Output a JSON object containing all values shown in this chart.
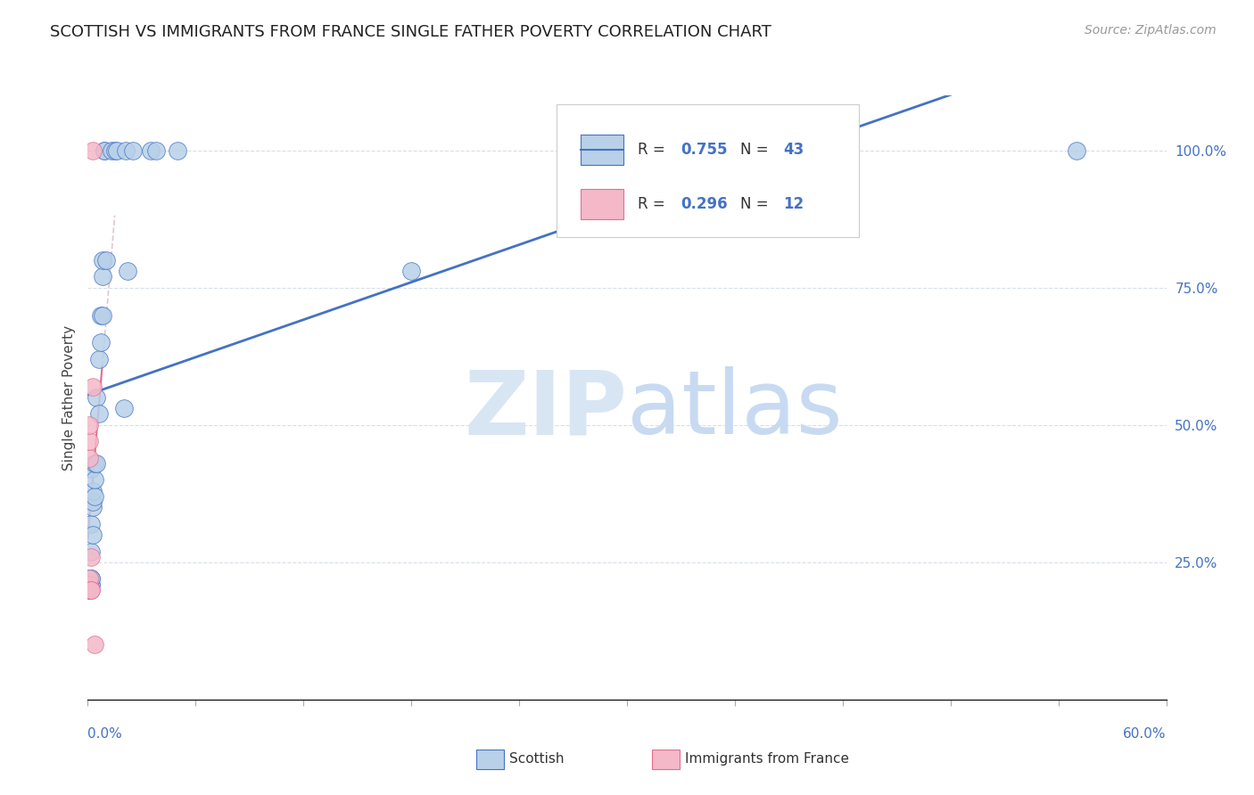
{
  "title": "SCOTTISH VS IMMIGRANTS FROM FRANCE SINGLE FATHER POVERTY CORRELATION CHART",
  "source": "Source: ZipAtlas.com",
  "ylabel": "Single Father Poverty",
  "legend_scottish": "Scottish",
  "legend_france": "Immigrants from France",
  "R_scottish": "0.755",
  "N_scottish": "43",
  "R_france": "0.296",
  "N_france": "12",
  "scottish_color": "#b8d0e8",
  "france_color": "#f4b8c8",
  "scottish_line_color": "#4472c4",
  "france_line_color": "#e07090",
  "france_dash_color": "#e0a0b8",
  "right_axis_color": "#4472c4",
  "watermark_zip_color": "#d8e6f4",
  "watermark_atlas_color": "#c8daf2",
  "grid_color": "#d8dfe8",
  "xlim": [
    0,
    0.6
  ],
  "ylim": [
    0,
    1.1
  ],
  "yticks": [
    0.25,
    0.5,
    0.75,
    1.0
  ],
  "ytick_labels": [
    "25.0%",
    "50.0%",
    "75.0%",
    "100.0%"
  ],
  "xtick_labels": [
    "0.0%",
    "60.0%"
  ],
  "scottish_x": [
    0.001,
    0.001,
    0.001,
    0.001,
    0.001,
    0.002,
    0.002,
    0.002,
    0.002,
    0.002,
    0.002,
    0.002,
    0.003,
    0.003,
    0.003,
    0.003,
    0.004,
    0.004,
    0.004,
    0.005,
    0.005,
    0.006,
    0.006,
    0.007,
    0.007,
    0.008,
    0.008,
    0.008,
    0.009,
    0.009,
    0.01,
    0.013,
    0.015,
    0.016,
    0.02,
    0.021,
    0.022,
    0.025,
    0.035,
    0.038,
    0.05,
    0.18,
    0.55
  ],
  "scottish_y": [
    0.2,
    0.21,
    0.21,
    0.21,
    0.22,
    0.21,
    0.21,
    0.22,
    0.22,
    0.27,
    0.32,
    0.42,
    0.3,
    0.35,
    0.36,
    0.38,
    0.37,
    0.4,
    0.43,
    0.43,
    0.55,
    0.52,
    0.62,
    0.65,
    0.7,
    0.7,
    0.77,
    0.8,
    1.0,
    1.0,
    0.8,
    1.0,
    1.0,
    1.0,
    0.53,
    1.0,
    0.78,
    1.0,
    1.0,
    1.0,
    1.0,
    0.78,
    1.0
  ],
  "france_x": [
    0.001,
    0.001,
    0.001,
    0.001,
    0.001,
    0.001,
    0.002,
    0.002,
    0.002,
    0.003,
    0.003,
    0.004
  ],
  "france_y": [
    0.2,
    0.21,
    0.22,
    0.44,
    0.47,
    0.5,
    0.2,
    0.2,
    0.26,
    0.57,
    1.0,
    0.1
  ]
}
